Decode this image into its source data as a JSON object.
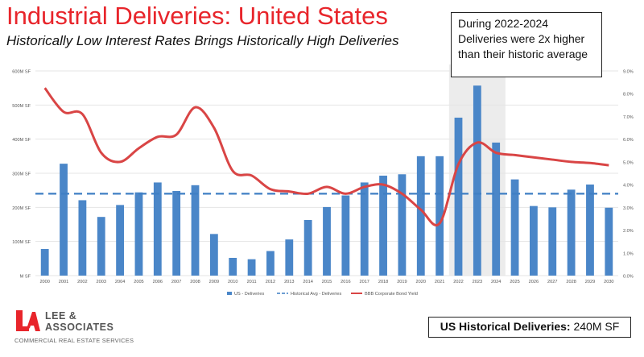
{
  "header": {
    "title": "Industrial Deliveries: United States",
    "subtitle": "Historically Low Interest Rates Brings Historically High Deliveries"
  },
  "callout": {
    "text": "During 2022-2024 Deliveries were 2x higher than their historic average"
  },
  "brand": {
    "name": "LEE & ASSOCIATES",
    "tagline": "COMMERCIAL REAL ESTATE SERVICES"
  },
  "summary": {
    "label": "US Historical Deliveries:",
    "value": "240M SF"
  },
  "colors": {
    "title": "#e8252b",
    "bars": "#4a86c8",
    "avg_line": "#3f7fc4",
    "yield_line": "#d94545",
    "highlight": "#e6e6e6"
  },
  "chart_data": {
    "type": "bar",
    "categories": [
      "2000",
      "2001",
      "2002",
      "2003",
      "2004",
      "2005",
      "2006",
      "2007",
      "2008",
      "2009",
      "2010",
      "2011",
      "2012",
      "2013",
      "2014",
      "2015",
      "2016",
      "2017",
      "2018",
      "2019",
      "2020",
      "2021",
      "2022",
      "2023",
      "2024",
      "2025",
      "2026",
      "2027",
      "2028",
      "2029",
      "2030"
    ],
    "series": [
      {
        "name": "US - Deliveries",
        "type": "bar",
        "axis": "left",
        "values": [
          78,
          328,
          221,
          172,
          207,
          244,
          273,
          248,
          265,
          122,
          52,
          48,
          72,
          106,
          163,
          201,
          235,
          273,
          293,
          297,
          350,
          350,
          463,
          557,
          390,
          282,
          204,
          200,
          252,
          267,
          199
        ]
      },
      {
        "name": "Historical Avg - Deliveries",
        "type": "line",
        "style": "dashed",
        "axis": "left",
        "values": [
          240,
          240,
          240,
          240,
          240,
          240,
          240,
          240,
          240,
          240,
          240,
          240,
          240,
          240,
          240,
          240,
          240,
          240,
          240,
          240,
          240,
          240,
          240,
          240,
          240,
          240,
          240,
          240,
          240,
          240,
          240
        ]
      },
      {
        "name": "BBB Corporate Bond Yield",
        "type": "line",
        "axis": "right",
        "values": [
          8.25,
          7.2,
          7.1,
          5.4,
          5.0,
          5.6,
          6.1,
          6.2,
          7.4,
          6.5,
          4.6,
          4.4,
          3.8,
          3.7,
          3.6,
          3.9,
          3.6,
          3.9,
          4.0,
          3.6,
          2.9,
          2.3,
          4.9,
          5.85,
          5.4,
          5.3,
          5.2,
          5.1,
          5.0,
          4.95,
          4.85
        ]
      }
    ],
    "y_left": {
      "ylim": [
        0,
        600
      ],
      "ticks": [
        "M SF",
        "100M SF",
        "200M SF",
        "300M SF",
        "400M SF",
        "500M SF",
        "600M SF"
      ]
    },
    "y_right": {
      "ylim": [
        0,
        9
      ],
      "ticks": [
        "0.0%",
        "1.0%",
        "2.0%",
        "3.0%",
        "4.0%",
        "5.0%",
        "6.0%",
        "7.0%",
        "8.0%",
        "9.0%"
      ]
    },
    "highlight_range": [
      "2022",
      "2024"
    ],
    "grid": true,
    "legend_position": "bottom",
    "legend": [
      "US - Deliveries",
      "Historical Avg - Deliveries",
      "BBB Corporate Bond Yield"
    ]
  }
}
